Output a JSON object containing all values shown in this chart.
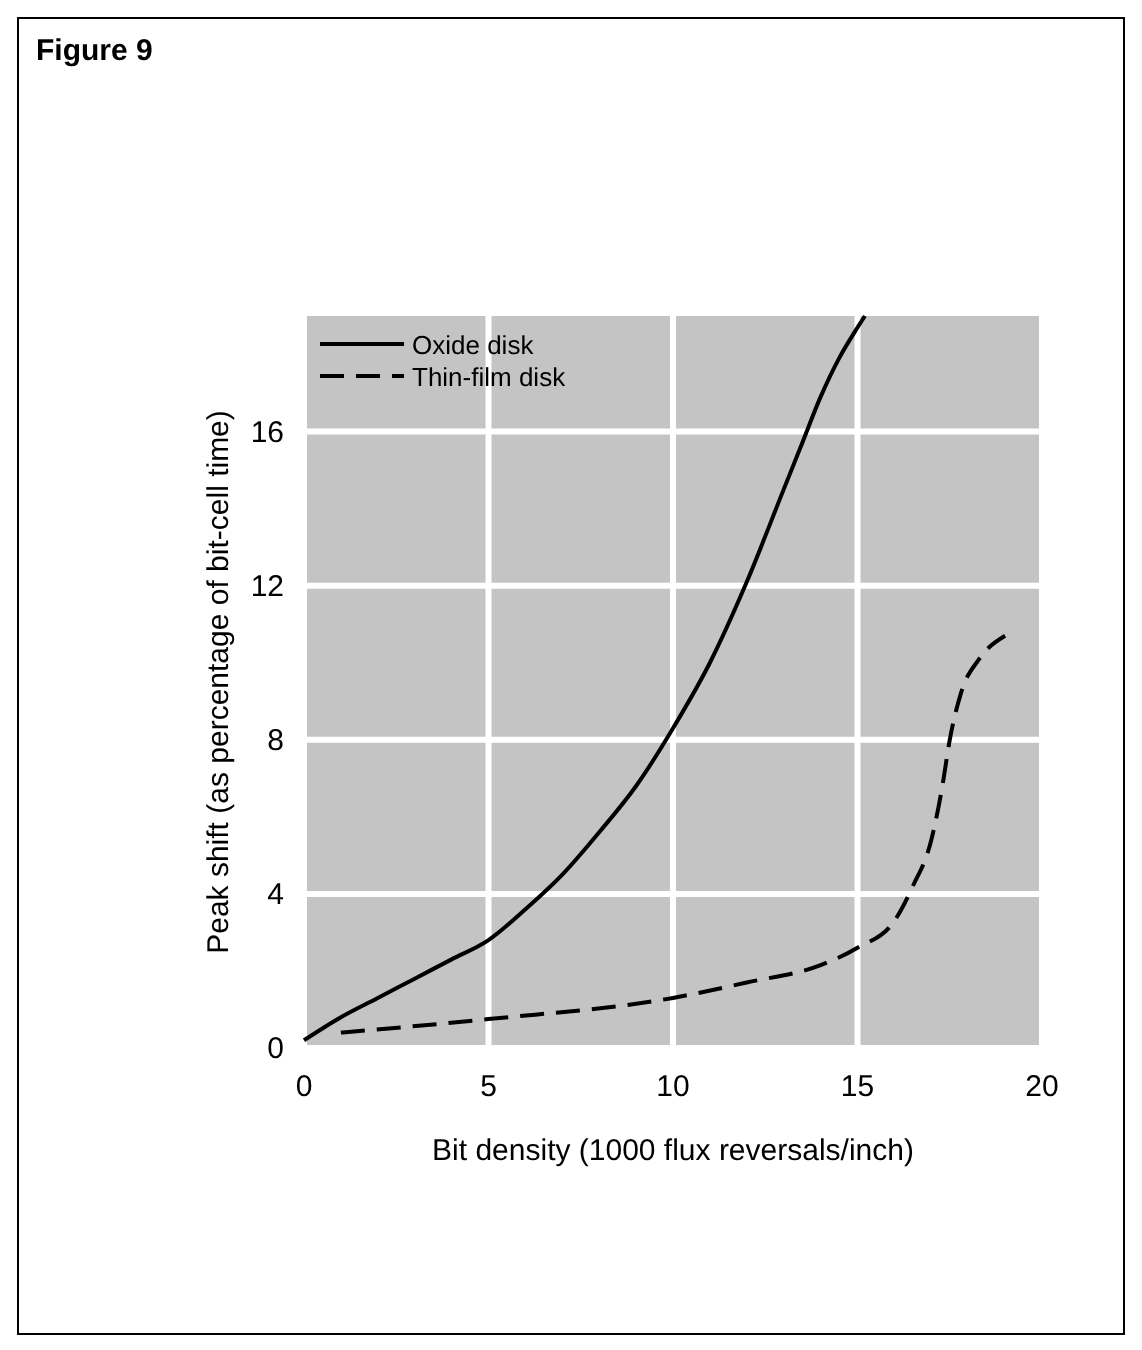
{
  "chart_data": {
    "type": "line",
    "title": "Figure 9",
    "xlabel": "Bit density (1000 flux reversals/inch)",
    "ylabel": "Peak shift (as percentage of bit-cell time)",
    "xlim": [
      0,
      20
    ],
    "ylim": [
      0,
      19
    ],
    "xticks": [
      0,
      5,
      10,
      15,
      20
    ],
    "yticks": [
      0,
      4,
      8,
      12,
      16
    ],
    "grid": true,
    "legend": "top left",
    "series": [
      {
        "name": "Oxide disk",
        "color": "#000000",
        "line_style": "solid",
        "x": [
          0,
          1,
          2,
          3,
          4,
          5,
          6,
          7,
          8,
          9,
          10,
          11,
          12,
          13,
          13.5,
          14,
          14.5,
          15,
          15.2
        ],
        "values": [
          0.2,
          0.8,
          1.3,
          1.8,
          2.3,
          2.8,
          3.6,
          4.5,
          5.6,
          6.8,
          8.3,
          10.0,
          12.1,
          14.5,
          15.7,
          16.9,
          17.9,
          18.7,
          19
        ]
      },
      {
        "name": "Thin-film disk",
        "color": "#000000",
        "line_style": "dashed",
        "x": [
          1,
          5,
          10,
          12,
          14,
          15,
          16,
          16.5,
          17,
          17.3,
          17.5,
          17.8,
          18.3,
          19
        ],
        "values": [
          0.4,
          0.75,
          1.3,
          1.7,
          2.15,
          2.6,
          3.3,
          4.2,
          5.4,
          6.8,
          8.0,
          9.2,
          10.1,
          10.7
        ]
      }
    ]
  }
}
